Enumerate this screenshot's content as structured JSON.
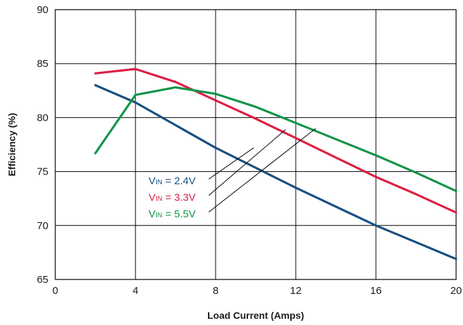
{
  "chart_data": {
    "type": "line",
    "title": "",
    "xlabel": "Load Current (Amps)",
    "ylabel": "Efficiency (%)",
    "xlim": [
      0,
      20
    ],
    "ylim": [
      65,
      90
    ],
    "xticks": [
      "0",
      "4",
      "8",
      "12",
      "16",
      "20"
    ],
    "yticks": [
      "65",
      "70",
      "75",
      "80",
      "85",
      "90"
    ],
    "grid": true,
    "series": [
      {
        "prefix": "V",
        "subscript": "IN",
        "value_text": " = 2.4V",
        "color": "#174f82",
        "x": [
          2,
          4,
          8,
          12,
          16,
          20
        ],
        "y": [
          83.0,
          81.4,
          77.2,
          73.5,
          70.0,
          66.9
        ]
      },
      {
        "prefix": "V",
        "subscript": "IN",
        "value_text": " = 3.3V",
        "color": "#dd1f45",
        "x": [
          2,
          4,
          6,
          8,
          10,
          12,
          14,
          16,
          18,
          20
        ],
        "y": [
          84.1,
          84.5,
          83.3,
          81.6,
          79.9,
          78.1,
          76.3,
          74.5,
          72.9,
          71.2
        ]
      },
      {
        "prefix": "V",
        "subscript": "IN",
        "value_text": " = 5.5V",
        "color": "#119447",
        "x": [
          2,
          4,
          6,
          8,
          10,
          12,
          14,
          16,
          18,
          20
        ],
        "y": [
          76.7,
          82.1,
          82.8,
          82.2,
          81.0,
          79.5,
          78.0,
          76.5,
          74.9,
          73.2
        ]
      }
    ]
  }
}
